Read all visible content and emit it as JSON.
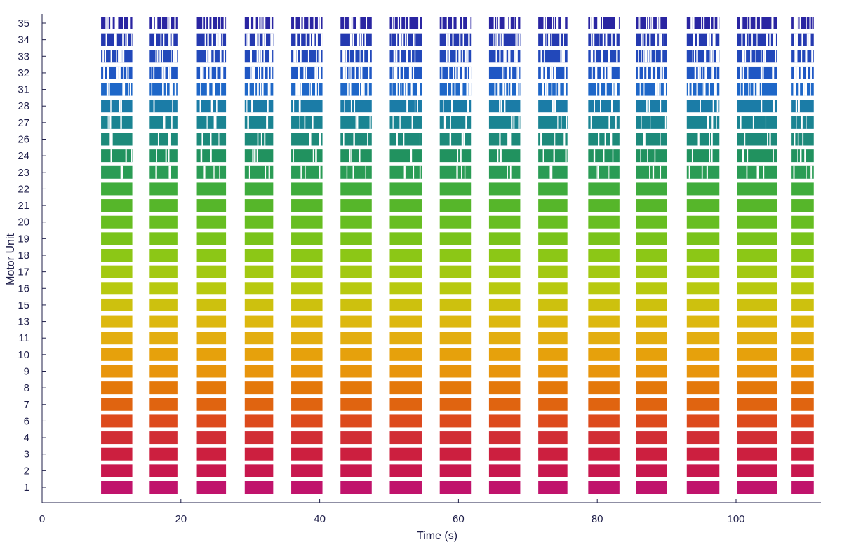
{
  "chart_data": {
    "type": "raster",
    "xlabel": "Time (s)",
    "ylabel": "Motor Unit",
    "xlim": [
      0,
      113
    ],
    "xticks": [
      0,
      20,
      40,
      60,
      80,
      100
    ],
    "grid": false,
    "legend": "none",
    "motor_units": [
      "1",
      "2",
      "3",
      "4",
      "6",
      "7",
      "8",
      "9",
      "10",
      "11",
      "13",
      "15",
      "16",
      "17",
      "18",
      "19",
      "20",
      "21",
      "22",
      "23",
      "24",
      "26",
      "27",
      "28",
      "31",
      "32",
      "33",
      "34",
      "35"
    ],
    "unit_colors": [
      "#c0136c",
      "#c8174e",
      "#cc1f3f",
      "#d12e35",
      "#dd4a1c",
      "#e06410",
      "#e4780a",
      "#e8950c",
      "#e6a10c",
      "#e3ae10",
      "#ddb80f",
      "#cdc10e",
      "#b7c90f",
      "#a3c912",
      "#8cc716",
      "#79c31a",
      "#67be21",
      "#56b62a",
      "#3fac3c",
      "#2a9c55",
      "#21925f",
      "#1d8a7a",
      "#1a8492",
      "#1b7ca7",
      "#1e67c8",
      "#1f57c4",
      "#2248ba",
      "#2439b0",
      "#2a25a2"
    ],
    "bursts": [
      {
        "start": 8.5,
        "end": 13.0
      },
      {
        "start": 15.5,
        "end": 19.5
      },
      {
        "start": 22.3,
        "end": 26.5
      },
      {
        "start": 29.2,
        "end": 33.3
      },
      {
        "start": 35.9,
        "end": 40.4
      },
      {
        "start": 43.0,
        "end": 47.5
      },
      {
        "start": 50.1,
        "end": 54.7
      },
      {
        "start": 57.3,
        "end": 61.8
      },
      {
        "start": 64.4,
        "end": 68.9
      },
      {
        "start": 71.5,
        "end": 75.7
      },
      {
        "start": 78.7,
        "end": 83.2
      },
      {
        "start": 85.6,
        "end": 90.0
      },
      {
        "start": 92.9,
        "end": 97.6
      },
      {
        "start": 100.2,
        "end": 105.9
      },
      {
        "start": 108.0,
        "end": 111.2
      }
    ]
  }
}
